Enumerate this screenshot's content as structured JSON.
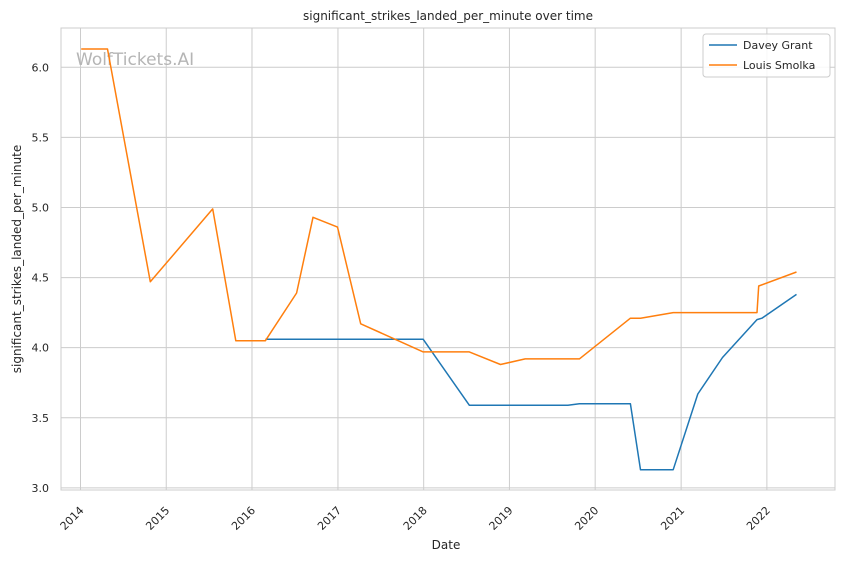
{
  "chart_data": {
    "type": "line",
    "title": "significant_strikes_landed_per_minute over time",
    "xlabel": "Date",
    "ylabel": "significant_strikes_landed_per_minute",
    "x_ticks": [
      "2014",
      "2015",
      "2016",
      "2017",
      "2018",
      "2019",
      "2020",
      "2021",
      "2022"
    ],
    "y_ticks": [
      "3.0",
      "3.5",
      "4.0",
      "4.5",
      "5.0",
      "5.5",
      "6.0"
    ],
    "xlim": [
      "2013-10-10",
      "2022-10-18"
    ],
    "ylim": [
      2.985,
      6.28
    ],
    "grid": true,
    "legend_position": "top-right",
    "watermark": "WolfTickets.AI",
    "series": [
      {
        "name": "Davey Grant",
        "color": "#1f77b4",
        "points": [
          [
            "2016-02-27",
            4.06
          ],
          [
            "2017-12-30",
            4.06
          ],
          [
            "2018-07-14",
            3.59
          ],
          [
            "2019-09-07",
            3.59
          ],
          [
            "2019-10-26",
            3.6
          ],
          [
            "2020-05-30",
            3.6
          ],
          [
            "2020-07-12",
            3.13
          ],
          [
            "2020-11-28",
            3.13
          ],
          [
            "2021-03-13",
            3.67
          ],
          [
            "2021-06-26",
            3.93
          ],
          [
            "2021-11-20",
            4.2
          ],
          [
            "2021-12-11",
            4.21
          ],
          [
            "2022-05-07",
            4.38
          ]
        ]
      },
      {
        "name": "Louis Smolka",
        "color": "#ff7f0e",
        "points": [
          [
            "2014-01-04",
            6.13
          ],
          [
            "2014-04-26",
            6.13
          ],
          [
            "2014-10-25",
            4.47
          ],
          [
            "2015-07-18",
            4.99
          ],
          [
            "2015-10-24",
            4.05
          ],
          [
            "2016-02-27",
            4.05
          ],
          [
            "2016-07-09",
            4.39
          ],
          [
            "2016-09-17",
            4.93
          ],
          [
            "2016-12-30",
            4.86
          ],
          [
            "2017-04-08",
            4.17
          ],
          [
            "2017-12-30",
            3.97
          ],
          [
            "2018-07-14",
            3.97
          ],
          [
            "2018-11-24",
            3.88
          ],
          [
            "2019-03-09",
            3.92
          ],
          [
            "2019-10-26",
            3.92
          ],
          [
            "2020-05-30",
            4.21
          ],
          [
            "2020-07-12",
            4.21
          ],
          [
            "2020-11-28",
            4.25
          ],
          [
            "2021-11-20",
            4.25
          ],
          [
            "2021-11-27",
            4.44
          ],
          [
            "2022-05-07",
            4.54
          ]
        ]
      }
    ]
  }
}
